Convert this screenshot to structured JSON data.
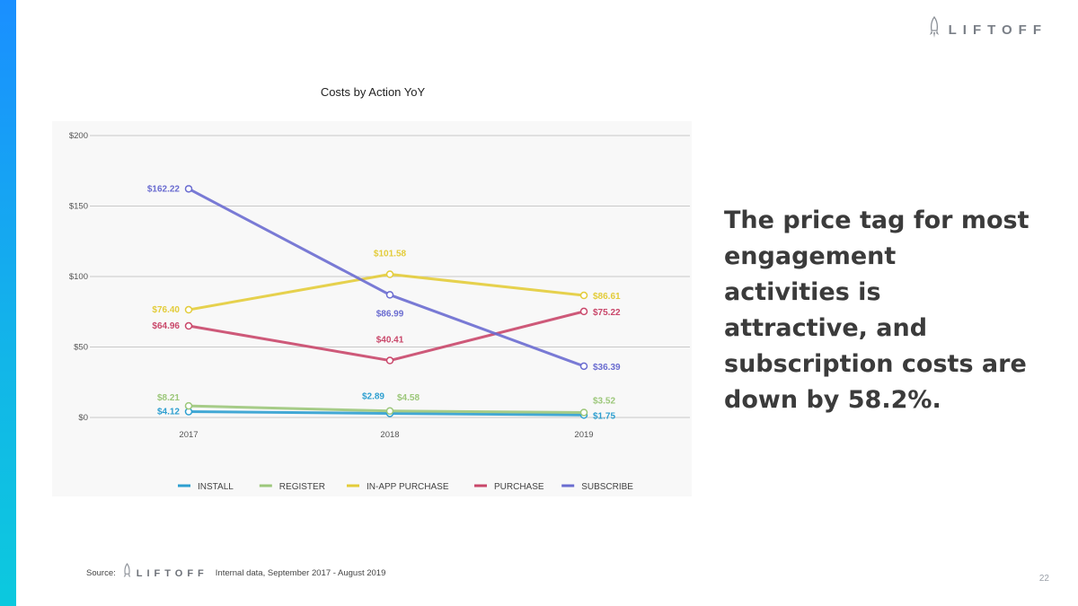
{
  "brand": {
    "name": "LIFTOFF"
  },
  "headline": "The price tag for most engagement activities is attractive, and subscription costs are down by 58.2%.",
  "source": {
    "label": "Source:",
    "brand": "LIFTOFF",
    "text": "Internal data, September 2017 - August 2019"
  },
  "page_number": "22",
  "chart_data": {
    "type": "line",
    "title": "Costs by Action YoY",
    "categories": [
      "2017",
      "2018",
      "2019"
    ],
    "ylim": [
      0,
      200
    ],
    "y_ticks": [
      0,
      50,
      100,
      150,
      200
    ],
    "y_tick_labels": [
      "$0",
      "$50",
      "$100",
      "$150",
      "$200"
    ],
    "grid": true,
    "legend_position": "bottom",
    "series": [
      {
        "name": "INSTALL",
        "color": "#2e9fd0",
        "values": [
          4.12,
          2.89,
          1.75
        ],
        "labels": [
          "$4.12",
          "$2.89",
          "$1.75"
        ]
      },
      {
        "name": "REGISTER",
        "color": "#9cc77a",
        "values": [
          8.21,
          4.58,
          3.52
        ],
        "labels": [
          "$8.21",
          "$4.58",
          "$3.52"
        ]
      },
      {
        "name": "IN-APP PURCHASE",
        "color": "#e3cc3a",
        "values": [
          76.4,
          101.58,
          86.61
        ],
        "labels": [
          "$76.40",
          "$101.58",
          "$86.61"
        ]
      },
      {
        "name": "PURCHASE",
        "color": "#c9476a",
        "values": [
          64.96,
          40.41,
          75.22
        ],
        "labels": [
          "$64.96",
          "$40.41",
          "$75.22"
        ]
      },
      {
        "name": "SUBSCRIBE",
        "color": "#6a6cd0",
        "values": [
          162.22,
          86.99,
          36.39
        ],
        "labels": [
          "$162.22",
          "$86.99",
          "$36.39"
        ]
      }
    ]
  }
}
